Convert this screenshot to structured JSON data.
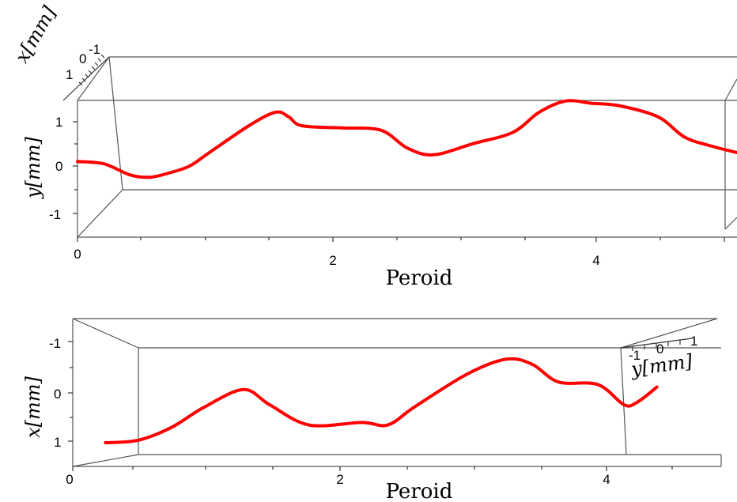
{
  "chart_data": [
    {
      "type": "line",
      "view": "3d-projection",
      "xlabel": "Peroid",
      "ylabel": "y[mm]",
      "zlabel": "x[mm]",
      "x_ticks": [
        "0",
        "2",
        "4"
      ],
      "y_ticks": [
        "1",
        "0",
        "-1"
      ],
      "z_ticks": [
        "1",
        "0",
        "-1"
      ],
      "xlim": [
        0,
        5
      ],
      "ylim": [
        -1.5,
        1.5
      ],
      "series": [
        {
          "color": "#ff0000",
          "x": [
            0.0,
            0.2,
            0.4,
            0.55,
            0.7,
            0.85,
            1.0,
            1.3,
            1.5,
            1.6,
            1.7,
            2.0,
            2.3,
            2.5,
            2.7,
            3.0,
            3.3,
            3.5,
            3.7,
            3.9,
            4.1,
            4.4,
            4.6,
            4.8,
            5.0
          ],
          "y": [
            0.1,
            0.05,
            -0.2,
            -0.25,
            -0.15,
            0.0,
            0.3,
            0.9,
            1.2,
            1.1,
            0.9,
            0.85,
            0.8,
            0.4,
            0.25,
            0.5,
            0.75,
            1.2,
            1.45,
            1.4,
            1.35,
            1.1,
            0.65,
            0.45,
            0.3
          ]
        }
      ]
    },
    {
      "type": "line",
      "view": "3d-projection",
      "xlabel": "Peroid",
      "ylabel": "x[mm]",
      "zlabel": "y[mm]",
      "x_ticks": [
        "0",
        "2",
        "4"
      ],
      "y_ticks": [
        "-1",
        "0",
        "1"
      ],
      "z_ticks": [
        "-1",
        "0",
        "1"
      ],
      "xlim": [
        0,
        5
      ],
      "ylim": [
        -1.5,
        1.5
      ],
      "series": [
        {
          "color": "#ff0000",
          "x": [
            0.25,
            0.5,
            0.75,
            1.0,
            1.3,
            1.5,
            1.8,
            2.2,
            2.4,
            2.6,
            3.0,
            3.3,
            3.5,
            3.7,
            4.0,
            4.2,
            4.3,
            4.45
          ],
          "y": [
            1.0,
            0.95,
            0.7,
            0.3,
            -0.05,
            0.25,
            0.65,
            0.6,
            0.65,
            0.3,
            -0.35,
            -0.65,
            -0.55,
            -0.2,
            -0.15,
            0.25,
            0.2,
            -0.1
          ]
        }
      ]
    }
  ]
}
